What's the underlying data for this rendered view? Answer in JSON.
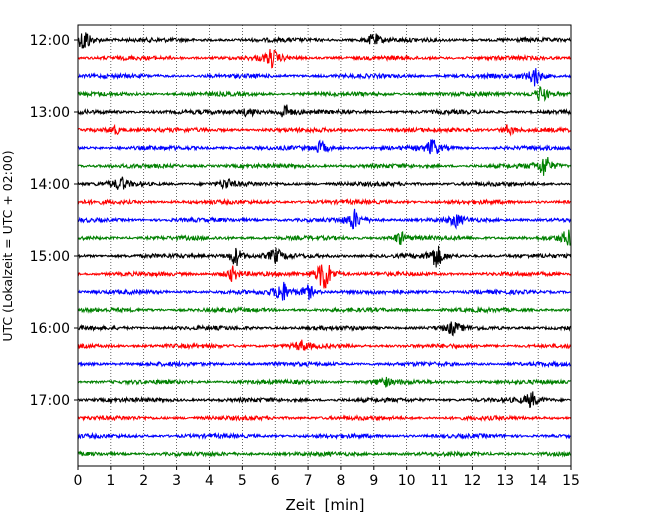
{
  "chart_data": {
    "type": "line",
    "title": "",
    "xlabel": "Zeit  [min]",
    "ylabel": "UTC (Lokalzeit = UTC + 02:00)",
    "xlim": [
      0,
      15
    ],
    "xticks": [
      0,
      1,
      2,
      3,
      4,
      5,
      6,
      7,
      8,
      9,
      10,
      11,
      12,
      13,
      14,
      15
    ],
    "grid": "vertical dotted at each minute",
    "trace_start_minutes": [
      0,
      15,
      30,
      45,
      60,
      75,
      90,
      105,
      120,
      135,
      150,
      165,
      180,
      195,
      210,
      225,
      240,
      255,
      270,
      285,
      300,
      315,
      330,
      345
    ],
    "ytick_labels": [
      "12:00",
      "13:00",
      "14:00",
      "15:00",
      "16:00",
      "17:00"
    ],
    "ytick_minutes": [
      0,
      60,
      120,
      180,
      240,
      300
    ],
    "colors": [
      "#000000",
      "#ff0000",
      "#0000ff",
      "#008000"
    ],
    "events": [
      {
        "row": 0,
        "x": 0.2,
        "amp": 1.0
      },
      {
        "row": 0,
        "x": 9.0,
        "amp": 0.5
      },
      {
        "row": 1,
        "x": 5.9,
        "amp": 0.7
      },
      {
        "row": 2,
        "x": 13.9,
        "amp": 0.8
      },
      {
        "row": 3,
        "x": 14.1,
        "amp": 0.7
      },
      {
        "row": 4,
        "x": 6.3,
        "amp": 0.6
      },
      {
        "row": 4,
        "x": 5.2,
        "amp": 0.4
      },
      {
        "row": 5,
        "x": 1.1,
        "amp": 0.4
      },
      {
        "row": 5,
        "x": 13.1,
        "amp": 0.4
      },
      {
        "row": 6,
        "x": 10.8,
        "amp": 0.7
      },
      {
        "row": 6,
        "x": 7.4,
        "amp": 0.5
      },
      {
        "row": 7,
        "x": 14.2,
        "amp": 0.9
      },
      {
        "row": 8,
        "x": 1.3,
        "amp": 0.5
      },
      {
        "row": 8,
        "x": 4.5,
        "amp": 0.4
      },
      {
        "row": 10,
        "x": 8.4,
        "amp": 0.8
      },
      {
        "row": 10,
        "x": 11.5,
        "amp": 0.5
      },
      {
        "row": 11,
        "x": 9.8,
        "amp": 0.5
      },
      {
        "row": 11,
        "x": 14.9,
        "amp": 0.6
      },
      {
        "row": 12,
        "x": 4.8,
        "amp": 0.8
      },
      {
        "row": 12,
        "x": 10.9,
        "amp": 0.9
      },
      {
        "row": 12,
        "x": 6.0,
        "amp": 0.6
      },
      {
        "row": 13,
        "x": 4.7,
        "amp": 0.6
      },
      {
        "row": 13,
        "x": 7.5,
        "amp": 1.6
      },
      {
        "row": 14,
        "x": 6.2,
        "amp": 0.9
      },
      {
        "row": 14,
        "x": 7.0,
        "amp": 0.6
      },
      {
        "row": 16,
        "x": 11.4,
        "amp": 0.5
      },
      {
        "row": 17,
        "x": 6.8,
        "amp": 0.4
      },
      {
        "row": 19,
        "x": 9.3,
        "amp": 0.4
      },
      {
        "row": 20,
        "x": 13.8,
        "amp": 0.6
      }
    ]
  }
}
